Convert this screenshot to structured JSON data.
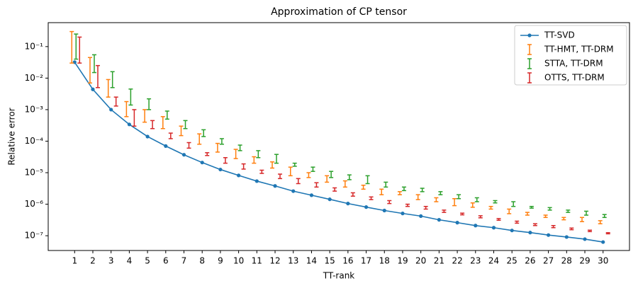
{
  "chart_data": {
    "type": "line",
    "title": "Approximation of CP tensor",
    "x_label": "TT-rank",
    "y_label": "Relative error",
    "y_scale": "log",
    "legend": "upper right",
    "x": [
      1,
      2,
      3,
      4,
      5,
      6,
      7,
      8,
      9,
      10,
      11,
      12,
      13,
      14,
      15,
      16,
      17,
      18,
      19,
      20,
      21,
      22,
      23,
      24,
      25,
      26,
      27,
      28,
      29,
      30
    ],
    "xlim": [
      -0.45,
      31.45
    ],
    "xticks": [
      1,
      2,
      3,
      4,
      5,
      6,
      7,
      8,
      9,
      10,
      11,
      12,
      13,
      14,
      15,
      16,
      17,
      18,
      19,
      20,
      21,
      22,
      23,
      24,
      25,
      26,
      27,
      28,
      29,
      30
    ],
    "ylim": [
      3.4e-08,
      0.575
    ],
    "yticks": [
      {
        "value": 1e-07,
        "label": "10⁻⁷"
      },
      {
        "value": 1e-06,
        "label": "10⁻⁶"
      },
      {
        "value": 1e-05,
        "label": "10⁻⁵"
      },
      {
        "value": 0.0001,
        "label": "10⁻⁴"
      },
      {
        "value": 0.001,
        "label": "10⁻³"
      },
      {
        "value": 0.01,
        "label": "10⁻²"
      },
      {
        "value": 0.1,
        "label": "10⁻¹"
      }
    ],
    "series": [
      {
        "name": "TT-SVD",
        "color": "#1f77b4",
        "values": [
          0.032,
          0.0044,
          0.001,
          0.00034,
          0.00014,
          7e-05,
          3.7e-05,
          2.1e-05,
          1.26e-05,
          8.2e-06,
          5.4e-06,
          3.8e-06,
          2.6e-06,
          1.93e-06,
          1.43e-06,
          1.05e-06,
          8.1e-07,
          6.3e-07,
          5.1e-07,
          4.2e-07,
          3.2e-07,
          2.6e-07,
          2.1e-07,
          1.8e-07,
          1.47e-07,
          1.26e-07,
          1.05e-07,
          9.1e-08,
          7.8e-08,
          6.3e-08
        ]
      },
      {
        "name": "TT-HMT, TT-DRM",
        "color": "#ff7f0e",
        "upper": [
          0.3,
          0.045,
          0.009,
          0.0018,
          0.001,
          0.0006,
          0.0003,
          0.00017,
          8.5e-05,
          5.5e-05,
          3.2e-05,
          2.2e-05,
          1.5e-05,
          1e-05,
          8e-06,
          5.5e-06,
          4e-06,
          3e-06,
          2.5e-06,
          2e-06,
          1.6e-06,
          1.5e-06,
          1.1e-06,
          8.5e-07,
          7e-07,
          5.5e-07,
          4.5e-07,
          3.8e-07,
          3.8e-07,
          3e-07
        ],
        "lower": [
          0.03,
          0.007,
          0.0025,
          0.0006,
          0.0004,
          0.00025,
          0.00015,
          8e-05,
          4.5e-05,
          2.8e-05,
          2e-05,
          1.4e-05,
          8e-06,
          7e-06,
          5e-06,
          3.5e-06,
          3e-06,
          2e-06,
          2e-06,
          1.4e-06,
          1.2e-06,
          9e-07,
          8e-07,
          7e-07,
          5e-07,
          4.5e-07,
          3.8e-07,
          3.2e-07,
          2.8e-07,
          2.4e-07
        ]
      },
      {
        "name": "STTA, TT-DRM",
        "color": "#2ca02c",
        "upper": [
          0.25,
          0.055,
          0.016,
          0.0045,
          0.0022,
          0.0009,
          0.00045,
          0.00023,
          0.00012,
          7.5e-05,
          5e-05,
          3.8e-05,
          2e-05,
          1.5e-05,
          1.1e-05,
          8.5e-06,
          8e-06,
          5e-06,
          3.5e-06,
          3.2e-06,
          2.5e-06,
          2e-06,
          1.6e-06,
          1.3e-06,
          1.2e-06,
          8.5e-07,
          7.8e-07,
          6.5e-07,
          6e-07,
          4.7e-07
        ],
        "lower": [
          0.04,
          0.015,
          0.005,
          0.0014,
          0.001,
          0.0005,
          0.00025,
          0.00014,
          8e-05,
          5e-05,
          3e-05,
          2e-05,
          1.6e-05,
          1.1e-05,
          7e-06,
          6e-06,
          4.5e-06,
          3.5e-06,
          2.7e-06,
          2.5e-06,
          2e-06,
          1.5e-06,
          1.2e-06,
          1.1e-06,
          8.5e-07,
          7.5e-07,
          6.5e-07,
          5.5e-07,
          4.5e-07,
          3.8e-07
        ]
      },
      {
        "name": "OTTS, TT-DRM",
        "color": "#d62728",
        "upper": [
          0.2,
          0.025,
          0.0025,
          0.001,
          0.00045,
          0.00018,
          9e-05,
          4.3e-05,
          3e-05,
          1.9e-05,
          1.2e-05,
          9e-06,
          6.5e-06,
          4.8e-06,
          3.3e-06,
          2.3e-06,
          1.7e-06,
          1.3e-06,
          1e-06,
          8.5e-07,
          6.5e-07,
          5.2e-07,
          4.3e-07,
          3.5e-07,
          2.9e-07,
          2.4e-07,
          2.1e-07,
          1.75e-07,
          1.5e-07,
          1.25e-07
        ],
        "lower": [
          0.03,
          0.005,
          0.0013,
          0.0003,
          0.00025,
          0.00012,
          6e-05,
          3.5e-05,
          2e-05,
          1.3e-05,
          9.5e-06,
          6.5e-06,
          4.5e-06,
          3.5e-06,
          2.6e-06,
          1.8e-06,
          1.4e-06,
          1.05e-06,
          8.5e-07,
          7e-07,
          5.5e-07,
          4.6e-07,
          3.7e-07,
          3.1e-07,
          2.5e-07,
          2.1e-07,
          1.8e-07,
          1.55e-07,
          1.35e-07,
          1.15e-07
        ]
      }
    ]
  }
}
